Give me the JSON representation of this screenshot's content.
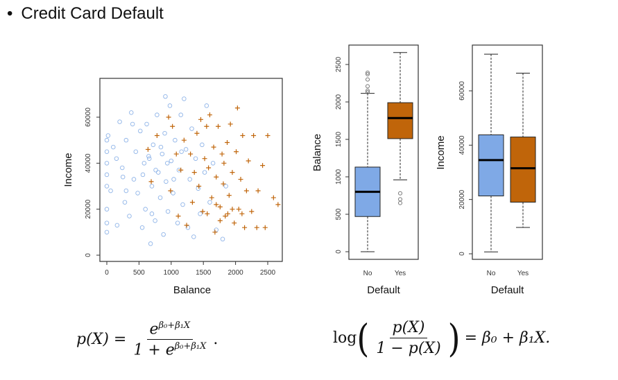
{
  "slide": {
    "bullet": "•",
    "title": "Credit Card Default"
  },
  "formulas": {
    "left": {
      "lhs": "p(X) =",
      "num_base": "e",
      "num_exp": "β₀+β₁X",
      "den_prefix": "1 + e",
      "den_exp": "β₀+β₁X",
      "tail": "."
    },
    "right": {
      "log": "log",
      "num": "p(X)",
      "den": "1 − p(X)",
      "rhs": "= β₀ + β₁X."
    }
  },
  "colors": {
    "no": "#8fb4e8",
    "no_box": "#7fa9e6",
    "yes": "#c0650a"
  },
  "chart_data": [
    {
      "type": "scatter",
      "xlabel": "Balance",
      "ylabel": "Income",
      "xlim": [
        0,
        2700
      ],
      "ylim": [
        0,
        73000
      ],
      "xticks": [
        "0",
        "500",
        "1000",
        "1500",
        "2000",
        "2500"
      ],
      "yticks": [
        "0",
        "20000",
        "40000",
        "60000"
      ],
      "series": [
        {
          "name": "No",
          "marker": "circle",
          "points": [
            [
              0,
              30000
            ],
            [
              0,
              35000
            ],
            [
              0,
              40000
            ],
            [
              0,
              45000
            ],
            [
              0,
              50000
            ],
            [
              0,
              20000
            ],
            [
              0,
              10000
            ],
            [
              0,
              14000
            ],
            [
              20,
              52000
            ],
            [
              60,
              28000
            ],
            [
              100,
              47000
            ],
            [
              160,
              13000
            ],
            [
              200,
              58000
            ],
            [
              240,
              38000
            ],
            [
              280,
              23000
            ],
            [
              300,
              50000
            ],
            [
              350,
              17000
            ],
            [
              380,
              62000
            ],
            [
              420,
              33000
            ],
            [
              450,
              45000
            ],
            [
              480,
              27000
            ],
            [
              520,
              54000
            ],
            [
              550,
              12000
            ],
            [
              580,
              40000
            ],
            [
              600,
              20000
            ],
            [
              620,
              57000
            ],
            [
              650,
              43000
            ],
            [
              680,
              5000
            ],
            [
              700,
              30000
            ],
            [
              720,
              48000
            ],
            [
              750,
              15000
            ],
            [
              780,
              61000
            ],
            [
              800,
              36000
            ],
            [
              830,
              25000
            ],
            [
              860,
              44000
            ],
            [
              880,
              9000
            ],
            [
              900,
              53000
            ],
            [
              920,
              32000
            ],
            [
              950,
              19000
            ],
            [
              980,
              65000
            ],
            [
              1000,
              41000
            ],
            [
              1030,
              27000
            ],
            [
              1060,
              50000
            ],
            [
              1100,
              14000
            ],
            [
              1120,
              37000
            ],
            [
              1150,
              61000
            ],
            [
              1180,
              22000
            ],
            [
              1200,
              68000
            ],
            [
              1230,
              46000
            ],
            [
              1260,
              12000
            ],
            [
              1290,
              33000
            ],
            [
              1320,
              55000
            ],
            [
              1350,
              8000
            ],
            [
              1380,
              42000
            ],
            [
              1420,
              29000
            ],
            [
              1450,
              18000
            ],
            [
              1480,
              48000
            ],
            [
              1520,
              36000
            ],
            [
              1550,
              65000
            ],
            [
              1600,
              23000
            ],
            [
              1650,
              40000
            ],
            [
              1700,
              11000
            ],
            [
              1800,
              7000
            ],
            [
              1850,
              30000
            ],
            [
              400,
              57000
            ],
            [
              560,
              35000
            ],
            [
              660,
              42000
            ],
            [
              760,
              37000
            ],
            [
              840,
              47000
            ],
            [
              940,
              40000
            ],
            [
              300,
              28000
            ],
            [
              150,
              42000
            ],
            [
              250,
              34000
            ],
            [
              700,
              18000
            ],
            [
              1040,
              33000
            ],
            [
              1160,
              45000
            ],
            [
              910,
              69000
            ]
          ]
        },
        {
          "name": "Yes",
          "marker": "plus",
          "points": [
            [
              640,
              46000
            ],
            [
              690,
              32000
            ],
            [
              780,
              52000
            ],
            [
              960,
              60000
            ],
            [
              990,
              28000
            ],
            [
              1020,
              56000
            ],
            [
              1080,
              44000
            ],
            [
              1110,
              17000
            ],
            [
              1150,
              37000
            ],
            [
              1200,
              50000
            ],
            [
              1240,
              13000
            ],
            [
              1300,
              44000
            ],
            [
              1330,
              23000
            ],
            [
              1360,
              36000
            ],
            [
              1400,
              53000
            ],
            [
              1430,
              30000
            ],
            [
              1460,
              59000
            ],
            [
              1490,
              19000
            ],
            [
              1520,
              42000
            ],
            [
              1550,
              56000
            ],
            [
              1580,
              38000
            ],
            [
              1600,
              61000
            ],
            [
              1630,
              25000
            ],
            [
              1660,
              47000
            ],
            [
              1680,
              10000
            ],
            [
              1700,
              34000
            ],
            [
              1730,
              56000
            ],
            [
              1760,
              21000
            ],
            [
              1790,
              44000
            ],
            [
              1810,
              31000
            ],
            [
              1840,
              17000
            ],
            [
              1870,
              49000
            ],
            [
              1900,
              26000
            ],
            [
              1920,
              57000
            ],
            [
              1950,
              36000
            ],
            [
              1980,
              14000
            ],
            [
              2010,
              45000
            ],
            [
              2030,
              64000
            ],
            [
              2050,
              20000
            ],
            [
              2080,
              33000
            ],
            [
              2110,
              52000
            ],
            [
              2140,
              12000
            ],
            [
              2170,
              28000
            ],
            [
              2200,
              41000
            ],
            [
              2250,
              19000
            ],
            [
              2280,
              52000
            ],
            [
              2330,
              12000
            ],
            [
              2350,
              28000
            ],
            [
              2420,
              39000
            ],
            [
              2460,
              12000
            ],
            [
              2500,
              52000
            ],
            [
              2590,
              25000
            ],
            [
              2660,
              22000
            ],
            [
              1880,
              18000
            ],
            [
              1760,
              15000
            ],
            [
              1560,
              18000
            ],
            [
              1700,
              22000
            ],
            [
              1950,
              20000
            ],
            [
              2100,
              18000
            ],
            [
              1820,
              40000
            ]
          ]
        }
      ]
    },
    {
      "type": "box",
      "xlabel": "Default",
      "ylabel": "Balance",
      "ylim": [
        0,
        2700
      ],
      "categories": [
        "No",
        "Yes"
      ],
      "yticks": [
        "0",
        "500",
        "1000",
        "1500",
        "2000",
        "2500"
      ],
      "boxes": [
        {
          "name": "No",
          "min": 0,
          "q1": 470,
          "median": 800,
          "q3": 1130,
          "max": 2115,
          "outliers": [
            2130,
            2150,
            2210,
            2300,
            2370,
            2390
          ]
        },
        {
          "name": "Yes",
          "min": 960,
          "q1": 1510,
          "median": 1785,
          "q3": 1990,
          "max": 2660,
          "outliers": [
            650,
            700,
            780
          ]
        }
      ]
    },
    {
      "type": "box",
      "xlabel": "Default",
      "ylabel": "Income",
      "ylim": [
        0,
        75000
      ],
      "categories": [
        "No",
        "Yes"
      ],
      "yticks": [
        "0",
        "20000",
        "40000",
        "60000"
      ],
      "boxes": [
        {
          "name": "No",
          "min": 700,
          "q1": 21300,
          "median": 34500,
          "q3": 43800,
          "max": 73500,
          "outliers": []
        },
        {
          "name": "Yes",
          "min": 9700,
          "q1": 19000,
          "median": 31500,
          "q3": 43000,
          "max": 66500,
          "outliers": []
        }
      ]
    }
  ]
}
